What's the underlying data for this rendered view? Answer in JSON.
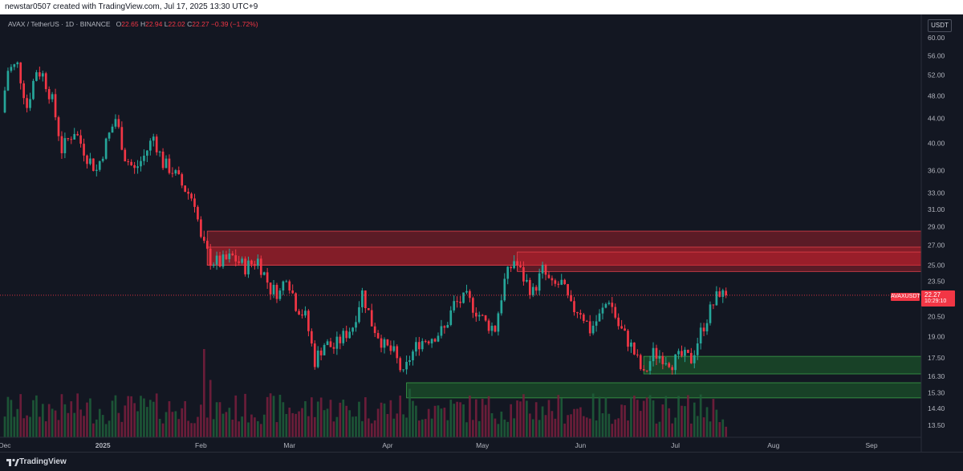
{
  "header": {
    "caption": "newstar0507 created with TradingView.com, Jul 17, 2025 13:30 UTC+9"
  },
  "legend": {
    "symbol_text": "AVAX / TetherUS · 1D · BINANCE",
    "o_label": "O",
    "o_value": "22.65",
    "h_label": "H",
    "h_value": "22.94",
    "l_label": "L",
    "l_value": "22.02",
    "c_label": "C",
    "c_value": "22.27",
    "change": "−0.39 (−1.72%)"
  },
  "currency_badge": "USDT",
  "price_tag": {
    "symbol": "AVAXUSDT",
    "price": "22.27",
    "countdown": "10:29:10"
  },
  "footer": {
    "brand": "TradingView"
  },
  "colors": {
    "background": "#131722",
    "up": "#26a69a",
    "down": "#f23645",
    "volume_up": "#1f5f3a",
    "volume_down": "#7a1f3d",
    "resistance_zone": "#b3212c",
    "support_zone": "#1d6b2c"
  },
  "chart_data": {
    "type": "candlestick",
    "scale": "log",
    "y_ticks": [
      "60.00",
      "56.00",
      "52.00",
      "48.00",
      "44.00",
      "40.00",
      "36.00",
      "33.00",
      "31.00",
      "29.00",
      "27.00",
      "25.00",
      "23.50",
      "22.27",
      "20.50",
      "19.00",
      "17.50",
      "16.30",
      "15.30",
      "14.40",
      "13.50"
    ],
    "x_ticks": [
      {
        "label": "Dec",
        "date": "2024-12-01"
      },
      {
        "label": "2025",
        "date": "2025-01-01"
      },
      {
        "label": "Feb",
        "date": "2025-02-01"
      },
      {
        "label": "Mar",
        "date": "2025-03-01"
      },
      {
        "label": "Apr",
        "date": "2025-04-01"
      },
      {
        "label": "May",
        "date": "2025-05-01"
      },
      {
        "label": "Jun",
        "date": "2025-06-01"
      },
      {
        "label": "Jul",
        "date": "2025-07-01"
      },
      {
        "label": "Aug",
        "date": "2025-08-01"
      },
      {
        "label": "Sep",
        "date": "2025-09-01"
      }
    ],
    "last_price": 22.27,
    "close_path": [
      [
        "2024-12-01",
        45
      ],
      [
        "2024-12-03",
        53
      ],
      [
        "2024-12-06",
        54
      ],
      [
        "2024-12-09",
        46
      ],
      [
        "2024-12-12",
        53
      ],
      [
        "2024-12-14",
        52
      ],
      [
        "2024-12-17",
        47
      ],
      [
        "2024-12-20",
        39
      ],
      [
        "2024-12-24",
        42
      ],
      [
        "2024-12-28",
        38
      ],
      [
        "2024-12-31",
        36
      ],
      [
        "2025-01-03",
        40
      ],
      [
        "2025-01-06",
        44
      ],
      [
        "2025-01-09",
        38
      ],
      [
        "2025-01-12",
        36
      ],
      [
        "2025-01-15",
        38
      ],
      [
        "2025-01-18",
        41
      ],
      [
        "2025-01-21",
        37
      ],
      [
        "2025-01-24",
        36
      ],
      [
        "2025-01-27",
        34
      ],
      [
        "2025-01-31",
        32
      ],
      [
        "2025-02-02",
        27.5
      ],
      [
        "2025-02-05",
        25.5
      ],
      [
        "2025-02-08",
        25.2
      ],
      [
        "2025-02-12",
        25.8
      ],
      [
        "2025-02-16",
        24.8
      ],
      [
        "2025-02-20",
        25.5
      ],
      [
        "2025-02-24",
        22.8
      ],
      [
        "2025-02-27",
        22.5
      ],
      [
        "2025-03-01",
        24.2
      ],
      [
        "2025-03-04",
        21.5
      ],
      [
        "2025-03-07",
        20.5
      ],
      [
        "2025-03-10",
        17.3
      ],
      [
        "2025-03-13",
        18.5
      ],
      [
        "2025-03-16",
        18.2
      ],
      [
        "2025-03-19",
        19.0
      ],
      [
        "2025-03-22",
        19.8
      ],
      [
        "2025-03-25",
        22.5
      ],
      [
        "2025-03-28",
        20.0
      ],
      [
        "2025-04-01",
        18.3
      ],
      [
        "2025-04-04",
        17.8
      ],
      [
        "2025-04-07",
        16.3
      ],
      [
        "2025-04-09",
        17.5
      ],
      [
        "2025-04-12",
        18.6
      ],
      [
        "2025-04-16",
        19.0
      ],
      [
        "2025-04-20",
        19.5
      ],
      [
        "2025-04-23",
        21.5
      ],
      [
        "2025-04-27",
        22.0
      ],
      [
        "2025-04-30",
        21.0
      ],
      [
        "2025-05-03",
        20.0
      ],
      [
        "2025-05-06",
        19.6
      ],
      [
        "2025-05-09",
        23.5
      ],
      [
        "2025-05-12",
        25.5
      ],
      [
        "2025-05-15",
        23.8
      ],
      [
        "2025-05-18",
        22.5
      ],
      [
        "2025-05-21",
        24.5
      ],
      [
        "2025-05-24",
        23.0
      ],
      [
        "2025-05-27",
        23.3
      ],
      [
        "2025-05-30",
        21.2
      ],
      [
        "2025-06-02",
        21.0
      ],
      [
        "2025-06-05",
        19.5
      ],
      [
        "2025-06-08",
        20.5
      ],
      [
        "2025-06-11",
        22.0
      ],
      [
        "2025-06-14",
        19.8
      ],
      [
        "2025-06-18",
        18.3
      ],
      [
        "2025-06-22",
        16.3
      ],
      [
        "2025-06-25",
        17.8
      ],
      [
        "2025-06-28",
        17.6
      ],
      [
        "2025-07-01",
        17.2
      ],
      [
        "2025-07-04",
        17.6
      ],
      [
        "2025-07-07",
        17.4
      ],
      [
        "2025-07-10",
        19.3
      ],
      [
        "2025-07-13",
        21.0
      ],
      [
        "2025-07-16",
        22.6
      ],
      [
        "2025-07-17",
        22.27
      ]
    ],
    "zones": [
      {
        "kind": "resistance",
        "from_date": "2025-02-03",
        "to_date": "2025-09-30",
        "low": 25.0,
        "high": 28.5
      },
      {
        "kind": "resistance",
        "from_date": "2025-02-03",
        "to_date": "2025-09-30",
        "low": 25.0,
        "high": 26.8
      },
      {
        "kind": "resistance",
        "from_date": "2025-05-12",
        "to_date": "2025-09-30",
        "low": 24.4,
        "high": 26.3
      },
      {
        "kind": "support",
        "from_date": "2025-06-21",
        "to_date": "2025-09-30",
        "low": 16.45,
        "high": 17.6
      },
      {
        "kind": "support",
        "from_date": "2025-04-07",
        "to_date": "2025-09-30",
        "low": 15.0,
        "high": 15.9
      }
    ]
  }
}
